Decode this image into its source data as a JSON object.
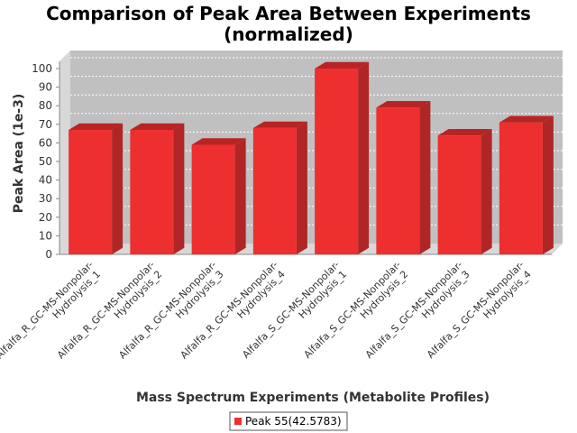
{
  "chart_data": {
    "type": "bar",
    "title_lines": [
      "Comparison of Peak Area Between Experiments",
      "(normalized)"
    ],
    "xlabel": "Mass Spectrum Experiments (Metabolite Profiles)",
    "ylabel": "Peak Area (1e-3)",
    "ylim": [
      0,
      100
    ],
    "yticks": [
      0,
      10,
      20,
      30,
      40,
      50,
      60,
      70,
      80,
      90,
      100
    ],
    "categories": [
      [
        "Alfalfa_R_GC-MS-Nonpolar-",
        "Hydrolysis_1"
      ],
      [
        "Alfalfa_R_GC-MS-Nonpolar-",
        "Hydrolysis_2"
      ],
      [
        "Alfalfa_R_GC-MS-Nonpolar-",
        "Hydrolysis_3"
      ],
      [
        "Alfalfa_R_GC-MS-Nonpolar-",
        "Hydrolysis_4"
      ],
      [
        "Alfalfa_S_GC-MS-Nonpolar-",
        "Hydrolysis_1"
      ],
      [
        "Alfalfa_S_GC-MS-Nonpolar-",
        "Hydrolysis_2"
      ],
      [
        "Alfalfa_S_GC-MS-Nonpolar-",
        "Hydrolysis_3"
      ],
      [
        "Alfalfa_S_GC-MS-Nonpolar-",
        "Hydrolysis_4"
      ]
    ],
    "series": [
      {
        "name": "Peak 55(42.5783)",
        "values": [
          67,
          67,
          59,
          68,
          100,
          79,
          64,
          71
        ],
        "color": "#ee2f2f"
      }
    ],
    "grid": true,
    "legend_position": "bottom"
  }
}
